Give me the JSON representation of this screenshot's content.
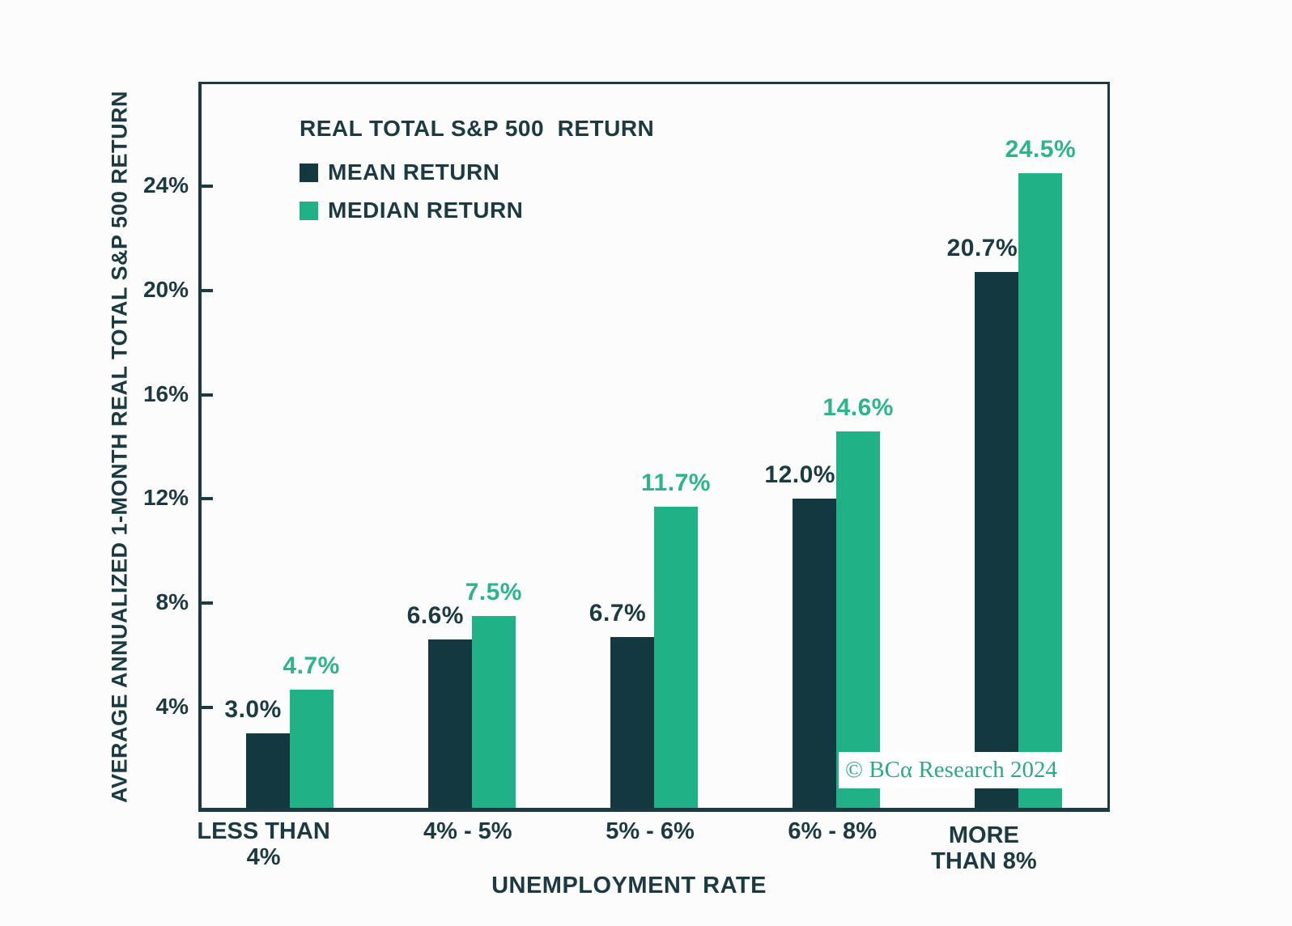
{
  "colors": {
    "mean_bar": "#143840",
    "median_bar": "#21b187",
    "text_dark": "#1b3a42",
    "text_green": "#2ab58b",
    "frame": "#1b3a42",
    "background": "#fcfcfc",
    "watermark_green": "#2aab84"
  },
  "legend": {
    "title": "REAL TOTAL S&P 500  RETURN",
    "items": [
      {
        "label": "MEAN RETURN",
        "color": "#143840"
      },
      {
        "label": "MEDIAN RETURN",
        "color": "#21b187"
      }
    ]
  },
  "watermark": {
    "text": "© BCα Research 2024"
  },
  "chart_data": {
    "type": "bar",
    "title": "REAL TOTAL S&P 500  RETURN",
    "xlabel": "UNEMPLOYMENT RATE",
    "ylabel": "AVERAGE ANNUALIZED 1-MONTH REAL TOTAL S&P 500 RETURN",
    "categories": [
      "LESS THAN 4%",
      "4% - 5%",
      "5% - 6%",
      "6% - 8%",
      "MORE THAN 8%"
    ],
    "category_lines": [
      [
        "LESS THAN",
        "4%"
      ],
      [
        "4% - 5%"
      ],
      [
        "5% - 6%"
      ],
      [
        "6% - 8%"
      ],
      [
        "MORE",
        "THAN 8%"
      ]
    ],
    "series": [
      {
        "name": "MEAN RETURN",
        "color": "#143840",
        "values": [
          3.0,
          6.6,
          6.7,
          12.0,
          20.7
        ],
        "value_labels": [
          "3.0%",
          "6.6%",
          "6.7%",
          "12.0%",
          "20.7%"
        ]
      },
      {
        "name": "MEDIAN RETURN",
        "color": "#21b187",
        "values": [
          4.7,
          7.5,
          11.7,
          14.6,
          24.5
        ],
        "value_labels": [
          "4.7%",
          "7.5%",
          "11.7%",
          "14.6%",
          "24.5%"
        ]
      }
    ],
    "yticks": [
      4,
      8,
      12,
      16,
      20,
      24
    ],
    "ytick_labels": [
      "4%",
      "8%",
      "12%",
      "16%",
      "20%",
      "24%"
    ],
    "ylim": [
      0,
      28
    ],
    "grid": false,
    "legend_position": "top-left"
  }
}
